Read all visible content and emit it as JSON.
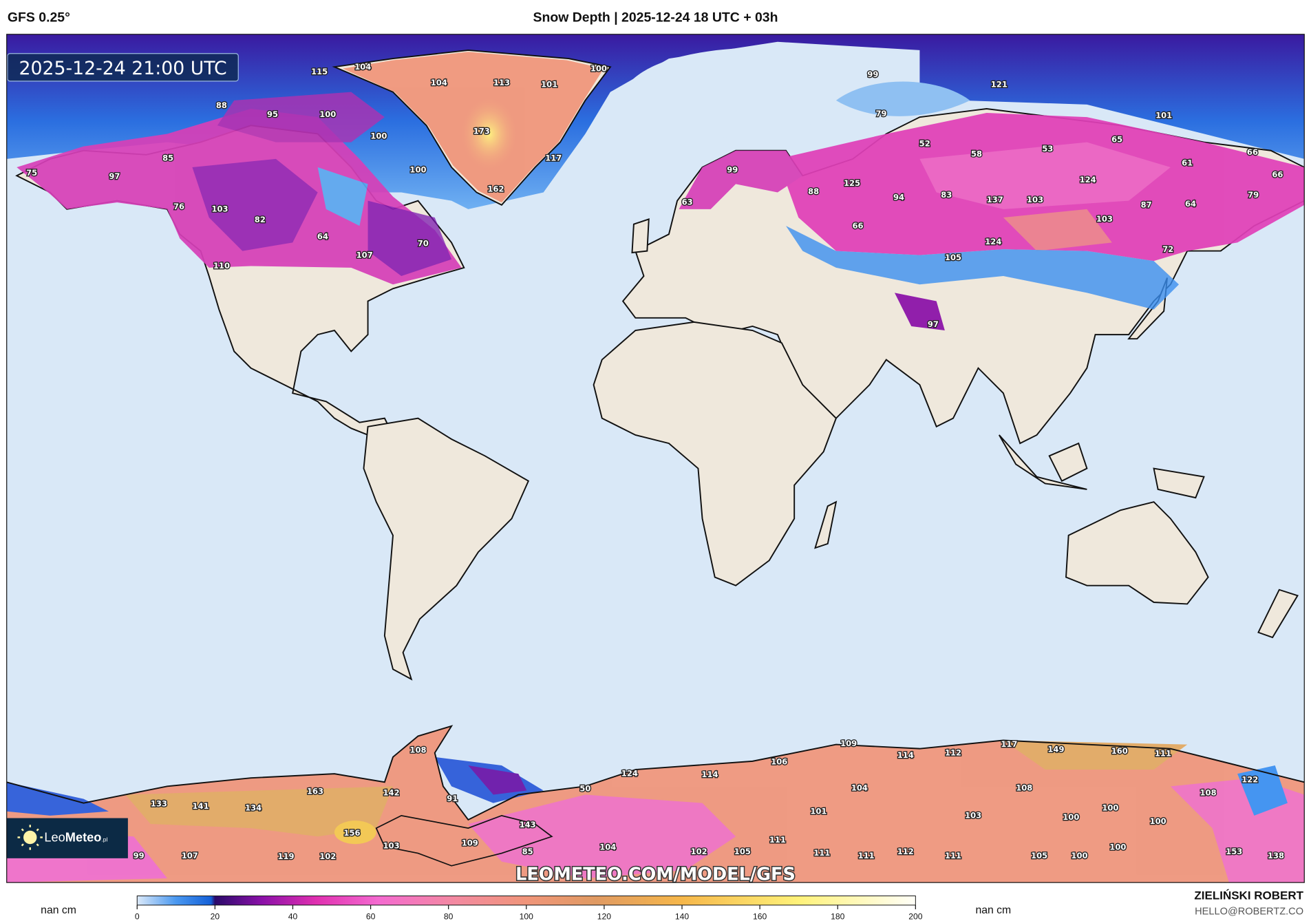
{
  "header": {
    "model": "GFS 0.25°",
    "title": "Snow Depth | 2025-12-24 18 UTC + 03h"
  },
  "map": {
    "valid_time": "2025-12-24 21:00 UTC",
    "watermark": "LEOMETEO.COM/MODEL/GFS",
    "logo": {
      "part1": "Leo",
      "part2": "Meteo",
      "suffix": ".pl"
    },
    "ocean_color": "#d9e8f7",
    "land_color": "#efe8dc",
    "snow_depth_labels_cm": [
      115,
      104,
      104,
      113,
      101,
      100,
      99,
      121,
      88,
      95,
      100,
      173,
      100,
      79,
      101,
      52,
      58,
      53,
      65,
      66,
      75,
      97,
      85,
      117,
      100,
      61,
      66,
      162,
      99,
      125,
      124,
      94,
      83,
      137,
      103,
      87,
      64,
      79,
      88,
      63,
      76,
      103,
      82,
      66,
      103,
      64,
      70,
      124,
      107,
      105,
      72,
      110,
      97,
      108,
      109,
      114,
      112,
      117,
      149,
      160,
      111,
      106,
      124,
      114,
      104,
      108,
      108,
      122,
      163,
      142,
      50,
      91,
      133,
      141,
      134,
      101,
      103,
      100,
      100,
      100,
      156,
      143,
      103,
      109,
      111,
      104,
      99,
      107,
      119,
      102,
      85,
      102,
      105,
      111,
      111,
      112,
      111,
      105,
      100,
      100,
      153,
      138
    ]
  },
  "colorbar": {
    "unit_left": "nan cm",
    "unit_right": "nan cm",
    "ticks": [
      "0",
      "20",
      "40",
      "60",
      "80",
      "100",
      "120",
      "140",
      "160",
      "180",
      "200"
    ],
    "range": [
      0,
      200
    ],
    "stops": [
      {
        "v": 0,
        "c": "#dbe9f9"
      },
      {
        "v": 10,
        "c": "#4a98f0"
      },
      {
        "v": 19,
        "c": "#1460d8"
      },
      {
        "v": 20,
        "c": "#2a0a6a"
      },
      {
        "v": 32,
        "c": "#8a10a8"
      },
      {
        "v": 46,
        "c": "#e030b0"
      },
      {
        "v": 62,
        "c": "#f46ad0"
      },
      {
        "v": 82,
        "c": "#f38aa0"
      },
      {
        "v": 100,
        "c": "#f0957a"
      },
      {
        "v": 118,
        "c": "#e09a62"
      },
      {
        "v": 140,
        "c": "#f6b74a"
      },
      {
        "v": 170,
        "c": "#fff27a"
      },
      {
        "v": 200,
        "c": "#fffff8"
      }
    ]
  },
  "footer": {
    "author": "ZIELIŃSKI ROBERT",
    "email": "HELLO@ROBERTZ.CO"
  }
}
